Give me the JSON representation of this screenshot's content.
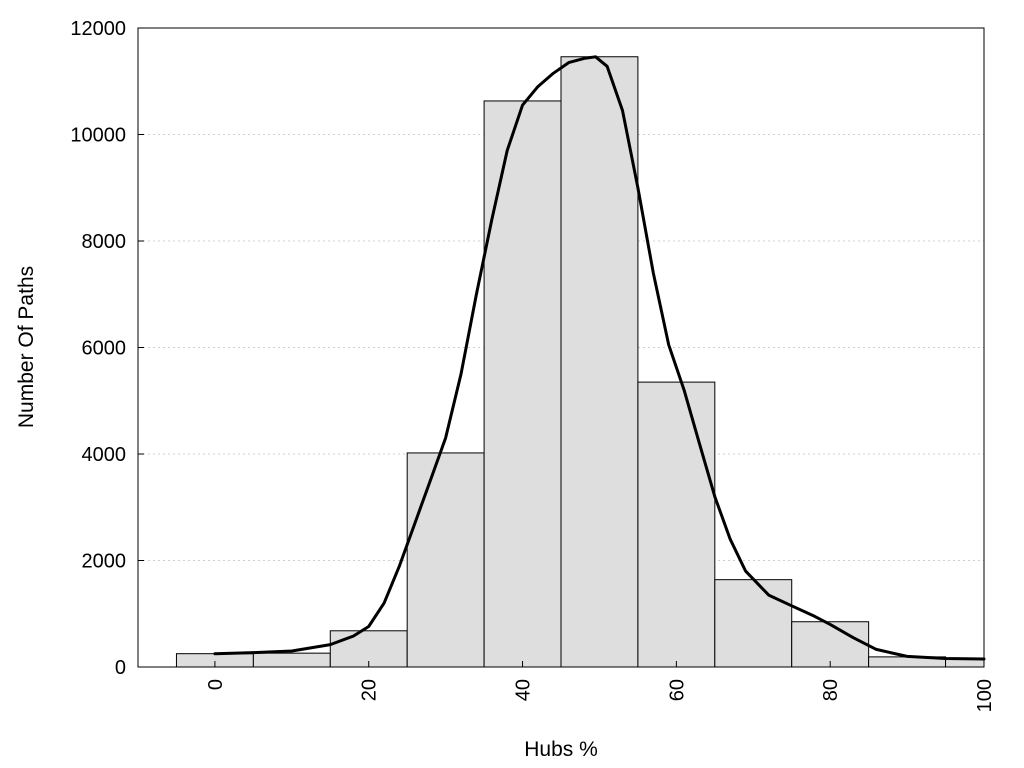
{
  "chart_data": {
    "type": "bar",
    "xlabel": "Hubs %",
    "ylabel": "Number Of Paths",
    "xlim": [
      -10,
      100
    ],
    "ylim": [
      0,
      12000
    ],
    "x_ticks": [
      "0",
      "20",
      "40",
      "60",
      "80",
      "100"
    ],
    "y_ticks": [
      "0",
      "2000",
      "4000",
      "6000",
      "8000",
      "10000",
      "12000"
    ],
    "grid": true,
    "bin_width": 10,
    "bins": [
      {
        "center": 0,
        "value": 250
      },
      {
        "center": 10,
        "value": 260
      },
      {
        "center": 20,
        "value": 680
      },
      {
        "center": 30,
        "value": 4020
      },
      {
        "center": 40,
        "value": 10630
      },
      {
        "center": 50,
        "value": 11460
      },
      {
        "center": 60,
        "value": 5350
      },
      {
        "center": 70,
        "value": 1640
      },
      {
        "center": 80,
        "value": 850
      },
      {
        "center": 90,
        "value": 190
      },
      {
        "center": 100,
        "value": 150
      }
    ],
    "density_curve": {
      "x": [
        0,
        5,
        10,
        15,
        18,
        20,
        22,
        24,
        26,
        28,
        30,
        32,
        34,
        36,
        38,
        40,
        42,
        44,
        46,
        48,
        49.5,
        51,
        53,
        55,
        57,
        59,
        61,
        63,
        65,
        67,
        69,
        72,
        75,
        78,
        80,
        83,
        86,
        90,
        95,
        100
      ],
      "y": [
        250,
        270,
        300,
        420,
        580,
        760,
        1200,
        1900,
        2700,
        3500,
        4300,
        5500,
        7000,
        8400,
        9700,
        10550,
        10900,
        11150,
        11350,
        11430,
        11460,
        11280,
        10450,
        9000,
        7400,
        6050,
        5200,
        4200,
        3200,
        2400,
        1800,
        1350,
        1150,
        950,
        800,
        550,
        330,
        200,
        160,
        150
      ]
    }
  }
}
